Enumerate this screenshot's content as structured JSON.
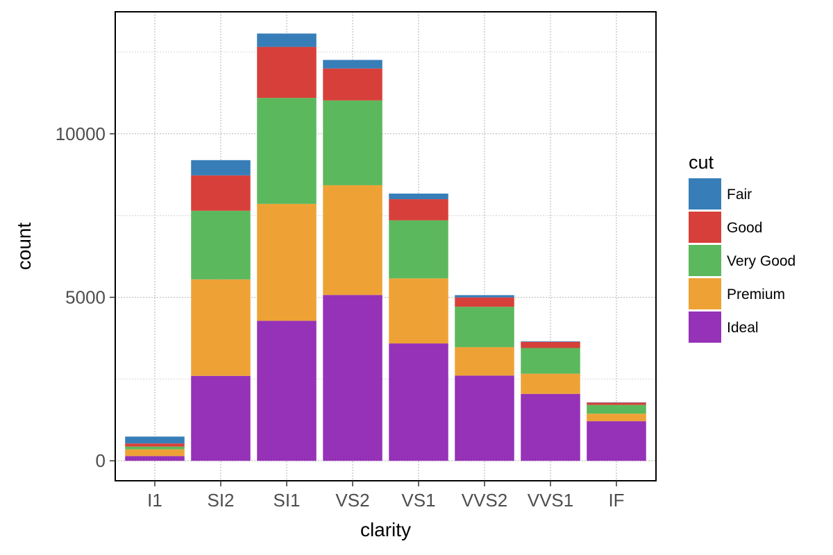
{
  "chart_data": {
    "type": "bar",
    "stacked": true,
    "xlabel": "clarity",
    "ylabel": "count",
    "ylim": [
      -610,
      13730
    ],
    "yticks": [
      0,
      5000,
      10000
    ],
    "ytick_labels": [
      "0",
      "5000",
      "10000"
    ],
    "minor_grid": [
      2500,
      7500,
      12500
    ],
    "grid": true,
    "legend": {
      "title": "cut",
      "placement": "right"
    },
    "categories": [
      "I1",
      "SI2",
      "SI1",
      "VS2",
      "VS1",
      "VVS2",
      "VVS1",
      "IF"
    ],
    "series": [
      {
        "name": "Fair",
        "color": "#377EB8",
        "values": [
          210,
          466,
          408,
          261,
          170,
          69,
          17,
          9
        ]
      },
      {
        "name": "Good",
        "color": "#D7403A",
        "values": [
          96,
          1081,
          1560,
          978,
          648,
          286,
          186,
          71
        ]
      },
      {
        "name": "Very Good",
        "color": "#5CB85C",
        "values": [
          84,
          2100,
          3240,
          2591,
          1775,
          1235,
          789,
          268
        ]
      },
      {
        "name": "Premium",
        "color": "#EEA236",
        "values": [
          205,
          2949,
          3575,
          3357,
          1989,
          870,
          616,
          230
        ]
      },
      {
        "name": "Ideal",
        "color": "#9532B7",
        "values": [
          146,
          2598,
          4282,
          5071,
          3589,
          2606,
          2047,
          1212
        ]
      }
    ],
    "stack_order": [
      "Ideal",
      "Premium",
      "Very Good",
      "Good",
      "Fair"
    ]
  }
}
